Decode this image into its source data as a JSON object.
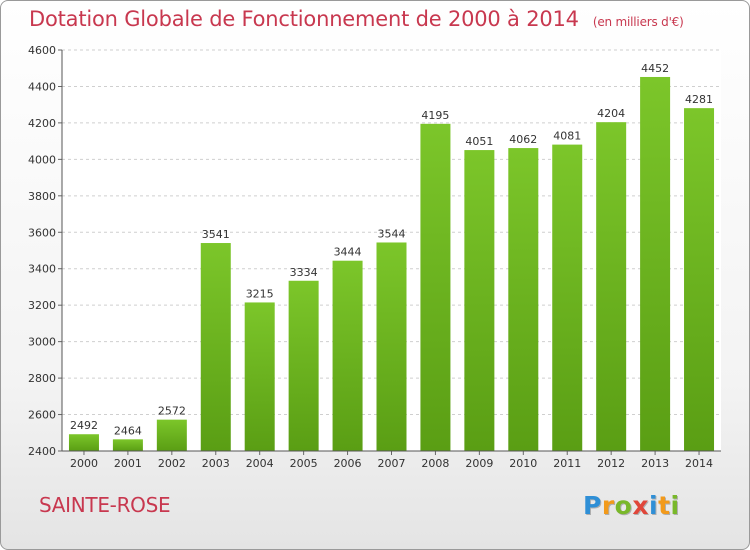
{
  "chart_data": {
    "type": "bar",
    "title": "Dotation Globale de Fonctionnement de 2000 à 2014",
    "subtitle": "(en milliers d'€)",
    "categories": [
      "2000",
      "2001",
      "2002",
      "2003",
      "2004",
      "2005",
      "2006",
      "2007",
      "2008",
      "2009",
      "2010",
      "2011",
      "2012",
      "2013",
      "2014"
    ],
    "values": [
      2492,
      2464,
      2572,
      3541,
      3215,
      3334,
      3444,
      3544,
      4195,
      4051,
      4062,
      4081,
      4204,
      4452,
      4281
    ],
    "ylim": [
      2400,
      4600
    ],
    "yticks": [
      2400,
      2600,
      2800,
      3000,
      3200,
      3400,
      3600,
      3800,
      4000,
      4200,
      4400,
      4600
    ],
    "grid": true,
    "bar_color": "#7cc62a",
    "bar_color_dark": "#5a9e14"
  },
  "location": "SAINTE-ROSE",
  "logo": {
    "text": "Proxiti",
    "letters": [
      {
        "ch": "P",
        "color": "#2f8fd6"
      },
      {
        "ch": "r",
        "color": "#f29a1b"
      },
      {
        "ch": "o",
        "color": "#79b82a"
      },
      {
        "ch": "x",
        "color": "#e0463a"
      },
      {
        "ch": "i",
        "color": "#2f8fd6"
      },
      {
        "ch": "t",
        "color": "#f29a1b"
      },
      {
        "ch": "i",
        "color": "#79b82a"
      }
    ]
  }
}
